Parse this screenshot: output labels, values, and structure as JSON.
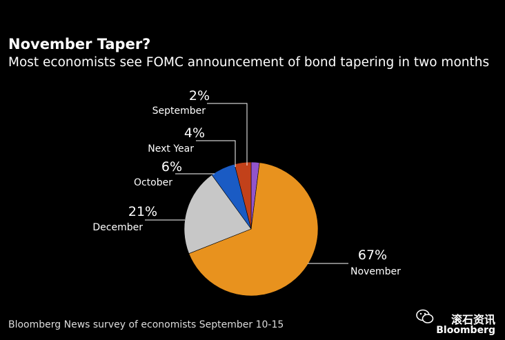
{
  "title": "November Taper?",
  "subtitle": "Most economists see FOMC announcement of bond tapering in two months",
  "source": "Bloomberg News survey of economists September 10-15",
  "watermark": {
    "chinese": "滚石资讯",
    "brand": "Bloomberg"
  },
  "colors": {
    "November": "#E8921E",
    "December": "#C7C7C7",
    "October": "#1A5BC4",
    "Next Year": "#C2411A",
    "September": "#9254CC"
  },
  "chart_data": {
    "type": "pie",
    "title": "November Taper?",
    "subtitle": "Most economists see FOMC announcement of bond tapering in two months",
    "slices": [
      {
        "label": "September",
        "value": 2,
        "display": "2%"
      },
      {
        "label": "November",
        "value": 67,
        "display": "67%"
      },
      {
        "label": "December",
        "value": 21,
        "display": "21%"
      },
      {
        "label": "October",
        "value": 6,
        "display": "6%"
      },
      {
        "label": "Next Year",
        "value": 4,
        "display": "4%"
      }
    ]
  }
}
